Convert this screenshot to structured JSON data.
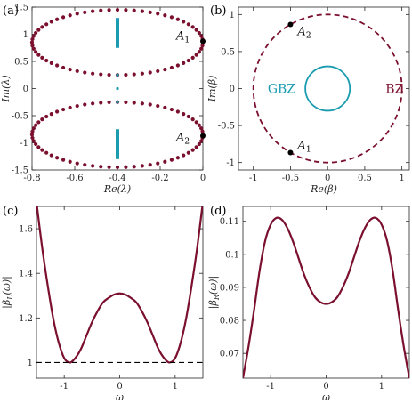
{
  "colors": {
    "dark_red": "#7a0f2e",
    "cyan": "#1a9bb0",
    "black": "#000000"
  },
  "chart_data": [
    {
      "panel_label": "(a)",
      "type": "scatter",
      "xlabel": "Re(λ)",
      "ylabel": "Im(λ)",
      "xlim": [
        -0.8,
        0
      ],
      "ylim": [
        -1.5,
        1.5
      ],
      "xticks": [
        "-0.8",
        "-0.6",
        "-0.4",
        "-0.2",
        "0"
      ],
      "yticks": [
        "1.5",
        "1",
        "0.5",
        "0",
        "-0.5",
        "-1",
        "-1.5"
      ],
      "xtick_values": [
        -0.8,
        -0.6,
        -0.4,
        -0.2,
        0
      ],
      "ytick_values": [
        1.5,
        1,
        0.5,
        0,
        -0.5,
        -1,
        -1.5
      ],
      "series": [
        {
          "color": "dark_red",
          "description_points": "two ellipses centered at (-0.4, ±0.85), semi-axes 0.4 (real) and 0.6 (imag), 64 points each",
          "ellipse": {
            "cx": -0.4,
            "cy": [
              0.85,
              -0.85
            ],
            "rx": 0.4,
            "ry": 0.6,
            "n": 64
          }
        },
        {
          "color": "cyan",
          "vertical_segments": [
            {
              "x": -0.4,
              "y": [
                0.75,
                1.3
              ]
            },
            {
              "x": -0.4,
              "y": [
                -1.3,
                -0.75
              ]
            }
          ],
          "points": [
            {
              "x": -0.4,
              "y": 0.25
            },
            {
              "x": -0.4,
              "y": 0
            },
            {
              "x": -0.4,
              "y": -0.25
            }
          ]
        }
      ],
      "annotations": [
        {
          "text_main": "A",
          "text_sub": "1",
          "x": 0,
          "y": 0.87
        },
        {
          "text_main": "A",
          "text_sub": "2",
          "x": 0,
          "y": -0.87
        }
      ]
    },
    {
      "panel_label": "(b)",
      "type": "scatter",
      "xlabel": "Re(β)",
      "ylabel": "Im(β)",
      "xlim": [
        -1.2,
        1.1
      ],
      "ylim": [
        -1.1,
        1.1
      ],
      "xticks": [
        "-1",
        "-0.5",
        "0",
        "0.5",
        "1"
      ],
      "yticks": [
        "1",
        "0.5",
        "0",
        "-0.5",
        "-1"
      ],
      "xtick_values": [
        -1,
        -0.5,
        0,
        0.5,
        1
      ],
      "ytick_values": [
        1,
        0.5,
        0,
        -0.5,
        -1
      ],
      "series": [
        {
          "name": "BZ",
          "color": "dark_red",
          "style": "dashed",
          "circle": {
            "cx": 0,
            "cy": 0,
            "r": 1
          }
        },
        {
          "name": "GBZ",
          "color": "cyan",
          "style": "solid",
          "circle": {
            "cx": 0,
            "cy": 0,
            "r": 0.3
          }
        }
      ],
      "labels": [
        {
          "text": "GBZ",
          "x": -0.62,
          "y": 0
        },
        {
          "text": "BZ",
          "x": 0.9,
          "y": 0
        }
      ],
      "annotations": [
        {
          "text_main": "A",
          "text_sub": "2",
          "x": -0.5,
          "y": 0.866
        },
        {
          "text_main": "A",
          "text_sub": "1",
          "x": -0.5,
          "y": -0.866
        }
      ]
    },
    {
      "panel_label": "(c)",
      "type": "line",
      "xlabel": "ω",
      "ylabel": "|β_L(ω)|",
      "xlim": [
        -1.5,
        1.5
      ],
      "ylim": [
        0.93,
        1.7
      ],
      "xticks": [
        "-1",
        "0",
        "1"
      ],
      "yticks": [
        "1.6",
        "1.4",
        "1.2",
        "1"
      ],
      "xtick_values": [
        -1,
        0,
        1
      ],
      "ytick_values": [
        1.6,
        1.4,
        1.2,
        1
      ],
      "series": [
        {
          "color": "dark_red",
          "x": [
            -1.5,
            -1.4,
            -1.3,
            -1.2,
            -1.1,
            -1.0,
            -0.9,
            -0.8,
            -0.7,
            -0.6,
            -0.5,
            -0.4,
            -0.3,
            -0.2,
            -0.1,
            0,
            0.1,
            0.2,
            0.3,
            0.4,
            0.5,
            0.6,
            0.7,
            0.8,
            0.9,
            1.0,
            1.1,
            1.2,
            1.3,
            1.4,
            1.5
          ],
          "y": [
            1.72,
            1.52,
            1.35,
            1.2,
            1.09,
            1.02,
            1.0,
            1.02,
            1.06,
            1.12,
            1.18,
            1.23,
            1.27,
            1.29,
            1.305,
            1.31,
            1.305,
            1.29,
            1.27,
            1.23,
            1.18,
            1.12,
            1.06,
            1.02,
            1.0,
            1.02,
            1.09,
            1.2,
            1.35,
            1.52,
            1.72
          ]
        },
        {
          "color": "black",
          "style": "dashed",
          "x": [
            -1.5,
            1.5
          ],
          "y": [
            1,
            1
          ]
        }
      ]
    },
    {
      "panel_label": "(d)",
      "type": "line",
      "xlabel": "ω",
      "ylabel": "|β_R(ω)|",
      "xlim": [
        -1.5,
        1.5
      ],
      "ylim": [
        0.0625,
        0.1145
      ],
      "xticks": [
        "-1",
        "0",
        "1"
      ],
      "yticks": [
        "0.11",
        "0.1",
        "0.09",
        "0.08",
        "0.07"
      ],
      "xtick_values": [
        -1,
        0,
        1
      ],
      "ytick_values": [
        0.11,
        0.1,
        0.09,
        0.08,
        0.07
      ],
      "series": [
        {
          "color": "dark_red",
          "x": [
            -1.5,
            -1.4,
            -1.3,
            -1.2,
            -1.1,
            -1.0,
            -0.9,
            -0.8,
            -0.7,
            -0.6,
            -0.5,
            -0.4,
            -0.3,
            -0.2,
            -0.1,
            0,
            0.1,
            0.2,
            0.3,
            0.4,
            0.5,
            0.6,
            0.7,
            0.8,
            0.9,
            1.0,
            1.1,
            1.2,
            1.3,
            1.4,
            1.5
          ],
          "y": [
            0.0625,
            0.072,
            0.083,
            0.095,
            0.104,
            0.109,
            0.111,
            0.1105,
            0.108,
            0.104,
            0.099,
            0.094,
            0.09,
            0.087,
            0.0855,
            0.085,
            0.0855,
            0.087,
            0.09,
            0.094,
            0.099,
            0.104,
            0.108,
            0.1105,
            0.111,
            0.109,
            0.104,
            0.095,
            0.083,
            0.072,
            0.0625
          ]
        }
      ]
    }
  ]
}
